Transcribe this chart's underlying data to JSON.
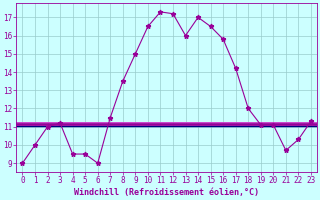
{
  "xlabel": "Windchill (Refroidissement éolien,°C)",
  "x_values": [
    0,
    1,
    2,
    3,
    4,
    5,
    6,
    7,
    8,
    9,
    10,
    11,
    12,
    13,
    14,
    15,
    16,
    17,
    18,
    19,
    20,
    21,
    22,
    23
  ],
  "y_curve": [
    9,
    10,
    11,
    11.2,
    9.5,
    9.5,
    9.0,
    11.5,
    13.5,
    15.0,
    16.5,
    17.3,
    17.2,
    16.0,
    17.0,
    16.5,
    15.8,
    14.2,
    12.0,
    11.1,
    11.1,
    9.7,
    10.3,
    11.3
  ],
  "hlines": [
    {
      "y": 11.05,
      "color": "#000080",
      "lw": 1.0
    },
    {
      "y": 11.15,
      "color": "#990099",
      "lw": 2.0
    },
    {
      "y": 11.25,
      "color": "#cc44cc",
      "lw": 0.7
    }
  ],
  "ylim": [
    8.5,
    17.8
  ],
  "xlim": [
    -0.5,
    23.5
  ],
  "yticks": [
    9,
    10,
    11,
    12,
    13,
    14,
    15,
    16,
    17
  ],
  "xticks": [
    0,
    1,
    2,
    3,
    4,
    5,
    6,
    7,
    8,
    9,
    10,
    11,
    12,
    13,
    14,
    15,
    16,
    17,
    18,
    19,
    20,
    21,
    22,
    23
  ],
  "curve_color": "#990099",
  "bg_color": "#ccffff",
  "grid_color": "#99cccc",
  "tick_color": "#990099",
  "label_color": "#990099",
  "font_size": 5.5,
  "xlabel_font_size": 6.0,
  "marker": "*",
  "marker_size": 3.5,
  "line_width": 0.8
}
